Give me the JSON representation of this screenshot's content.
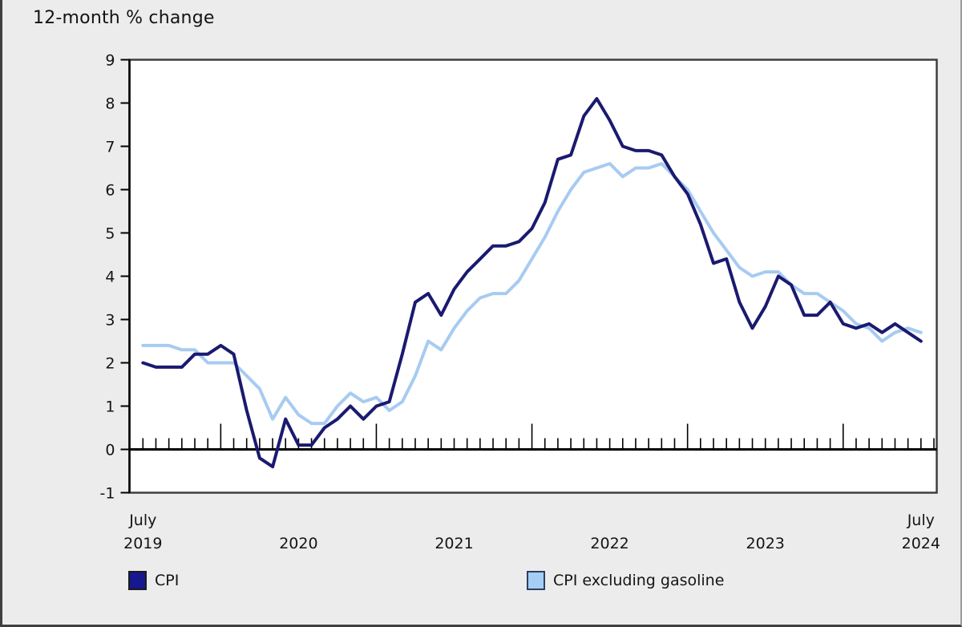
{
  "title": "12-month % change",
  "colors": {
    "background": "#ececec",
    "plot_background": "#ffffff",
    "frame": "#3e3e3e",
    "axis": "#000000",
    "text": "#141414",
    "cpi_line": "#1a1a70",
    "cpi_excl_gas_line": "#a7cbf1",
    "cpi_swatch_fill": "#17178f",
    "cpi_swatch_border": "#1c1c1c",
    "cpi_excl_gas_swatch_fill": "#a4cef6",
    "cpi_excl_gas_swatch_border": "#2f3f5f"
  },
  "legend": {
    "cpi_label": "CPI",
    "cpi_excl_gas_label": "CPI excluding gasoline"
  },
  "chart_data": {
    "type": "line",
    "title": "12-month % change",
    "ylabel": "",
    "xlabel": "",
    "ylim": [
      -1,
      9
    ],
    "grid": false,
    "legend_position": "bottom",
    "yticks": [
      9,
      8,
      7,
      6,
      5,
      4,
      3,
      2,
      1,
      0,
      -1
    ],
    "xtick_labels": [
      {
        "idx": 0,
        "top": "July",
        "bottom": "2019"
      },
      {
        "idx": 12,
        "top": "",
        "bottom": "2020"
      },
      {
        "idx": 24,
        "top": "",
        "bottom": "2021"
      },
      {
        "idx": 36,
        "top": "",
        "bottom": "2022"
      },
      {
        "idx": 48,
        "top": "",
        "bottom": "2023"
      },
      {
        "idx": 60,
        "top": "July",
        "bottom": "2024"
      }
    ],
    "x": [
      "2019-07",
      "2019-08",
      "2019-09",
      "2019-10",
      "2019-11",
      "2019-12",
      "2020-01",
      "2020-02",
      "2020-03",
      "2020-04",
      "2020-05",
      "2020-06",
      "2020-07",
      "2020-08",
      "2020-09",
      "2020-10",
      "2020-11",
      "2020-12",
      "2021-01",
      "2021-02",
      "2021-03",
      "2021-04",
      "2021-05",
      "2021-06",
      "2021-07",
      "2021-08",
      "2021-09",
      "2021-10",
      "2021-11",
      "2021-12",
      "2022-01",
      "2022-02",
      "2022-03",
      "2022-04",
      "2022-05",
      "2022-06",
      "2022-07",
      "2022-08",
      "2022-09",
      "2022-10",
      "2022-11",
      "2022-12",
      "2023-01",
      "2023-02",
      "2023-03",
      "2023-04",
      "2023-05",
      "2023-06",
      "2023-07",
      "2023-08",
      "2023-09",
      "2023-10",
      "2023-11",
      "2023-12",
      "2024-01",
      "2024-02",
      "2024-03",
      "2024-04",
      "2024-05",
      "2024-06",
      "2024-07"
    ],
    "series": [
      {
        "name": "CPI",
        "color": "#1a1a70",
        "values": [
          2.0,
          1.9,
          1.9,
          1.9,
          2.2,
          2.2,
          2.4,
          2.2,
          0.9,
          -0.2,
          -0.4,
          0.7,
          0.1,
          0.1,
          0.5,
          0.7,
          1.0,
          0.7,
          1.0,
          1.1,
          2.2,
          3.4,
          3.6,
          3.1,
          3.7,
          4.1,
          4.4,
          4.7,
          4.7,
          4.8,
          5.1,
          5.7,
          6.7,
          6.8,
          7.7,
          8.1,
          7.6,
          7.0,
          6.9,
          6.9,
          6.8,
          6.3,
          5.9,
          5.2,
          4.3,
          4.4,
          3.4,
          2.8,
          3.3,
          4.0,
          3.8,
          3.1,
          3.1,
          3.4,
          2.9,
          2.8,
          2.9,
          2.7,
          2.9,
          2.7,
          2.5
        ]
      },
      {
        "name": "CPI excluding gasoline",
        "color": "#a7cbf1",
        "values": [
          2.4,
          2.4,
          2.4,
          2.3,
          2.3,
          2.0,
          2.0,
          2.0,
          1.7,
          1.4,
          0.7,
          1.2,
          0.8,
          0.6,
          0.6,
          1.0,
          1.3,
          1.1,
          1.2,
          0.9,
          1.1,
          1.7,
          2.5,
          2.3,
          2.8,
          3.2,
          3.5,
          3.6,
          3.6,
          3.9,
          4.4,
          4.9,
          5.5,
          6.0,
          6.4,
          6.5,
          6.6,
          6.3,
          6.5,
          6.5,
          6.6,
          6.3,
          6.0,
          5.5,
          5.0,
          4.6,
          4.2,
          4.0,
          4.1,
          4.1,
          3.8,
          3.6,
          3.6,
          3.4,
          3.2,
          2.9,
          2.8,
          2.5,
          2.7,
          2.8,
          2.7
        ]
      }
    ]
  }
}
